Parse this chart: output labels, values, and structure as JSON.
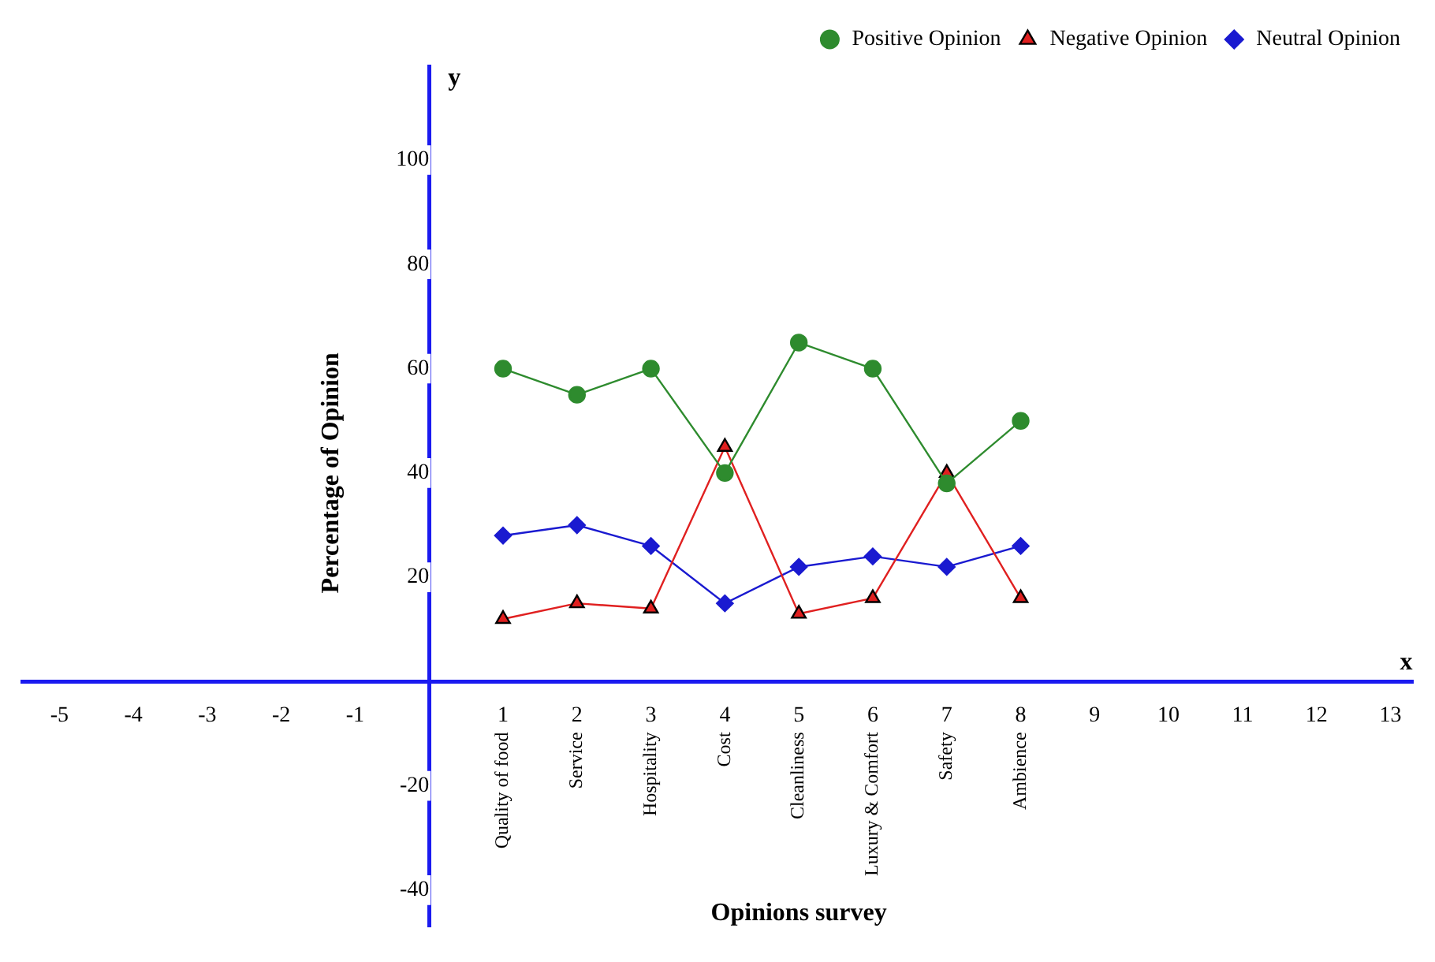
{
  "chart_data": {
    "type": "line",
    "xlabel": "Opinions survey",
    "ylabel": "Percentage of Opinion",
    "x": [
      1,
      2,
      3,
      4,
      5,
      6,
      7,
      8
    ],
    "series": [
      {
        "name": "Positive Opinion",
        "color": "#2e8b2e",
        "values": [
          60,
          55,
          60,
          40,
          65,
          60,
          38,
          50
        ],
        "marker": "circle"
      },
      {
        "name": "Negative Opinion",
        "color": "#e02020",
        "values": [
          12,
          15,
          14,
          45,
          13,
          16,
          40,
          16
        ],
        "marker": "triangle"
      },
      {
        "name": "Neutral Opinion",
        "color": "#1a1ad0",
        "values": [
          28,
          30,
          26,
          15,
          22,
          24,
          22,
          26
        ],
        "marker": "diamond"
      }
    ],
    "xlim": [
      -5.5,
      13.3
    ],
    "xticks": [
      -5,
      -4,
      -3,
      -2,
      -1,
      1,
      2,
      3,
      4,
      5,
      6,
      7,
      8,
      9,
      10,
      11,
      12,
      13
    ],
    "ylim": [
      -47,
      118
    ],
    "yticks": [
      -40,
      -20,
      20,
      40,
      60,
      80,
      100
    ],
    "annotations": [
      "y",
      "x",
      "Quality of food",
      "Service",
      "Hospitality",
      "Cost",
      "Cleanliness",
      "Luxury & Comfort",
      "Safety",
      "Ambience"
    ],
    "grid": false,
    "legend": "top right",
    "line_style": "solid"
  }
}
